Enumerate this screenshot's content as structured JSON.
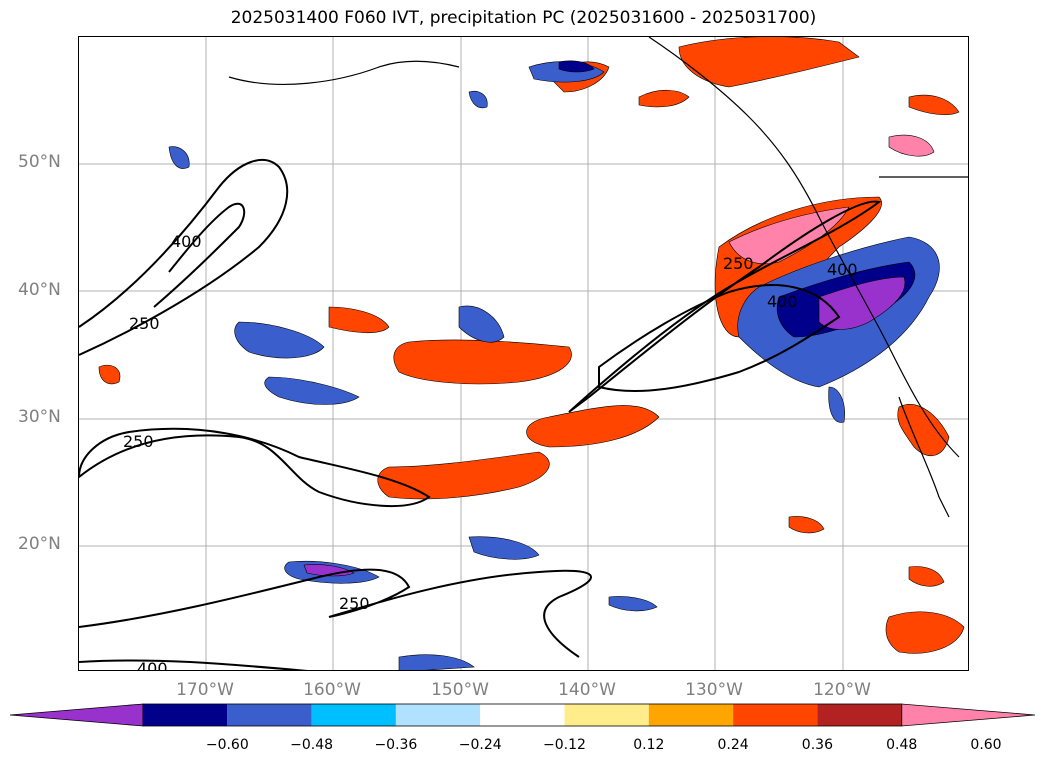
{
  "title": "2025031400 F060 IVT, precipitation PC (2025031600 - 2025031700)",
  "map": {
    "lat_labels": [
      "50°N",
      "40°N",
      "30°N",
      "20°N"
    ],
    "lon_labels": [
      "170°W",
      "160°W",
      "150°W",
      "140°W",
      "130°W",
      "120°W"
    ],
    "contour_labels": [
      "400",
      "250",
      "250",
      "400",
      "400",
      "250",
      "250",
      "400"
    ]
  },
  "colorbar": {
    "colors": [
      "#9932cc",
      "#00008b",
      "#3a5fcd",
      "#00bfff",
      "#b0e2ff",
      "#ffffff",
      "#ffec8b",
      "#ffa500",
      "#ff4500",
      "#b22222",
      "#ff82ab"
    ],
    "ticks": [
      "−0.60",
      "−0.48",
      "−0.36",
      "−0.24",
      "−0.12",
      "0.12",
      "0.24",
      "0.36",
      "0.48",
      "0.60"
    ]
  }
}
